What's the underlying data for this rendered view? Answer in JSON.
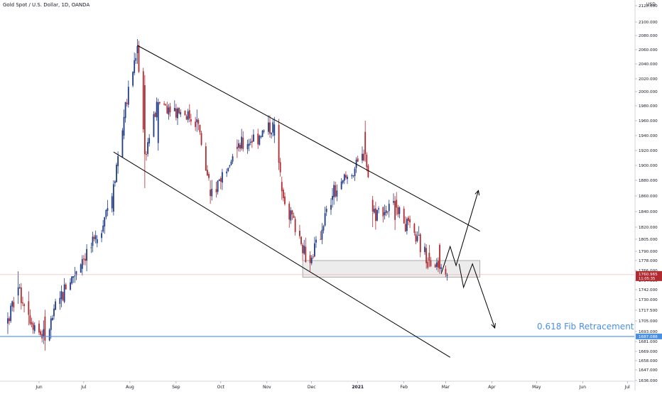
{
  "header": {
    "title": "Gold Spot / U.S. Dollar, 1D, OANDA",
    "currency": "USD"
  },
  "colors": {
    "up": "#1f3c88",
    "down": "#b02a30",
    "trendline": "#000000",
    "fib_line": "#4a90e2",
    "fib_text": "#4a90e2",
    "price_line": "#f09a9a",
    "zone_fill": "#e6e6e6",
    "zone_border": "#999999"
  },
  "annotations": {
    "fib_label": "0.618 Fib Retracement",
    "fib_price_tag": "1687.088",
    "last_price_tag": "1760.965",
    "countdown_tag": "11:05:35"
  },
  "chart_data": {
    "type": "candlestick",
    "title": "Gold Spot / U.S. Dollar, 1D, OANDA",
    "y_unit": "USD",
    "x_tick_labels": [
      "Jun",
      "Jul",
      "Aug",
      "Sep",
      "Oct",
      "Nov",
      "Dec",
      "2021",
      "Feb",
      "Mar",
      "Apr",
      "May",
      "Jun",
      "Jul"
    ],
    "y_tick_labels": [
      "2120.000",
      "2100.000",
      "2080.000",
      "2060.000",
      "2040.000",
      "2020.000",
      "2000.000",
      "1980.000",
      "1960.000",
      "1940.000",
      "1920.000",
      "1900.000",
      "1880.000",
      "1860.000",
      "1840.000",
      "1820.000",
      "1805.000",
      "1790.000",
      "1778.000",
      "1766.000",
      "1754.000",
      "1742.000",
      "1730.000",
      "1717.500",
      "1705.000",
      "1693.000",
      "1681.000",
      "1669.000",
      "1658.000",
      "1647.000",
      "1636.000"
    ],
    "y_range": [
      1636,
      2120
    ],
    "x_range": [
      "2020-05-10",
      "2021-07-28"
    ],
    "support_zone": {
      "low": 1758,
      "high": 1778,
      "from": "2020-11-25",
      "to": "2021-03-24"
    },
    "fib_level": 1687.088,
    "last_price": 1760.965,
    "channel_lines": [
      {
        "name": "upper",
        "from": [
          "2020-08-06",
          2066
        ],
        "to": [
          "2021-03-24",
          1815
        ]
      },
      {
        "name": "lower",
        "from": [
          "2020-07-21",
          1918
        ],
        "to": [
          "2021-03-04",
          1662
        ]
      }
    ],
    "projection_paths": [
      {
        "name": "bullish",
        "points": [
          [
            "2021-02-26",
            1762
          ],
          [
            "2021-03-04",
            1796
          ],
          [
            "2021-03-08",
            1772
          ],
          [
            "2021-03-23",
            1867
          ]
        ]
      },
      {
        "name": "bearish",
        "points": [
          [
            "2021-03-10",
            1774
          ],
          [
            "2021-03-13",
            1745
          ],
          [
            "2021-03-19",
            1774
          ],
          [
            "2021-04-03",
            1697
          ]
        ]
      }
    ],
    "candles_sampled": [
      {
        "d": "2020-05-11",
        "o": 1702,
        "h": 1715,
        "l": 1690,
        "c": 1708
      },
      {
        "d": "2020-05-18",
        "o": 1735,
        "h": 1765,
        "l": 1725,
        "c": 1745
      },
      {
        "d": "2020-05-25",
        "o": 1728,
        "h": 1740,
        "l": 1700,
        "c": 1712
      },
      {
        "d": "2020-06-05",
        "o": 1710,
        "h": 1718,
        "l": 1670,
        "c": 1682
      },
      {
        "d": "2020-06-15",
        "o": 1725,
        "h": 1740,
        "l": 1718,
        "c": 1732
      },
      {
        "d": "2020-06-30",
        "o": 1768,
        "h": 1785,
        "l": 1760,
        "c": 1780
      },
      {
        "d": "2020-07-10",
        "o": 1800,
        "h": 1810,
        "l": 1795,
        "c": 1805
      },
      {
        "d": "2020-07-21",
        "o": 1840,
        "h": 1880,
        "l": 1835,
        "c": 1875
      },
      {
        "d": "2020-07-28",
        "o": 1940,
        "h": 1975,
        "l": 1935,
        "c": 1965
      },
      {
        "d": "2020-08-06",
        "o": 2055,
        "h": 2075,
        "l": 2040,
        "c": 2065
      },
      {
        "d": "2020-08-11",
        "o": 2010,
        "h": 2025,
        "l": 1870,
        "c": 1915
      },
      {
        "d": "2020-08-20",
        "o": 1930,
        "h": 1990,
        "l": 1920,
        "c": 1985
      },
      {
        "d": "2020-09-15",
        "o": 1958,
        "h": 1975,
        "l": 1945,
        "c": 1962
      },
      {
        "d": "2020-09-24",
        "o": 1868,
        "h": 1880,
        "l": 1850,
        "c": 1860
      },
      {
        "d": "2020-10-12",
        "o": 1925,
        "h": 1935,
        "l": 1910,
        "c": 1922
      },
      {
        "d": "2020-11-06",
        "o": 1940,
        "h": 1965,
        "l": 1930,
        "c": 1955
      },
      {
        "d": "2020-11-11",
        "o": 1878,
        "h": 1885,
        "l": 1855,
        "c": 1866
      },
      {
        "d": "2020-11-30",
        "o": 1785,
        "h": 1790,
        "l": 1765,
        "c": 1775
      },
      {
        "d": "2020-12-15",
        "o": 1855,
        "h": 1870,
        "l": 1845,
        "c": 1860
      },
      {
        "d": "2021-01-06",
        "o": 1945,
        "h": 1960,
        "l": 1905,
        "c": 1915
      },
      {
        "d": "2021-01-11",
        "o": 1855,
        "h": 1860,
        "l": 1820,
        "c": 1840
      },
      {
        "d": "2021-01-27",
        "o": 1855,
        "h": 1865,
        "l": 1835,
        "c": 1845
      },
      {
        "d": "2021-02-18",
        "o": 1788,
        "h": 1798,
        "l": 1770,
        "c": 1778
      },
      {
        "d": "2021-02-25",
        "o": 1798,
        "h": 1800,
        "l": 1762,
        "c": 1768
      },
      {
        "d": "2021-03-01",
        "o": 1768,
        "h": 1772,
        "l": 1758,
        "c": 1761
      }
    ]
  }
}
